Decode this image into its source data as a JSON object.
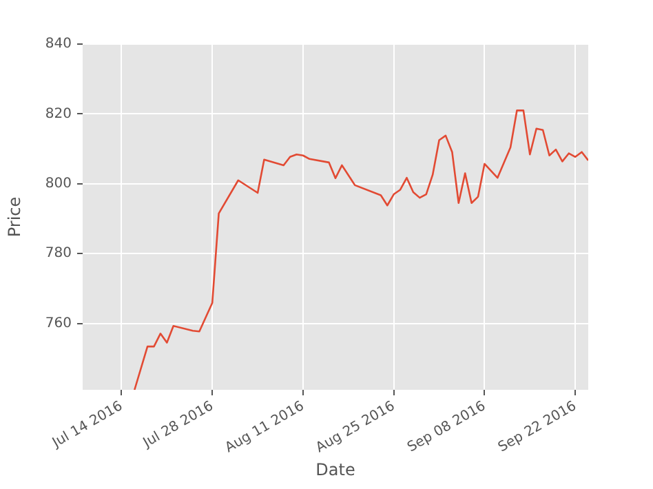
{
  "chart_data": {
    "type": "line",
    "xlabel": "Date",
    "ylabel": "Price",
    "x": [
      "2016-07-16",
      "2016-07-18",
      "2016-07-19",
      "2016-07-20",
      "2016-07-21",
      "2016-07-22",
      "2016-07-25",
      "2016-07-26",
      "2016-07-28",
      "2016-07-29",
      "2016-08-01",
      "2016-08-04",
      "2016-08-05",
      "2016-08-08",
      "2016-08-09",
      "2016-08-10",
      "2016-08-11",
      "2016-08-12",
      "2016-08-15",
      "2016-08-16",
      "2016-08-17",
      "2016-08-19",
      "2016-08-23",
      "2016-08-24",
      "2016-08-25",
      "2016-08-26",
      "2016-08-27",
      "2016-08-28",
      "2016-08-29",
      "2016-08-30",
      "2016-08-31",
      "2016-09-01",
      "2016-09-02",
      "2016-09-03",
      "2016-09-04",
      "2016-09-05",
      "2016-09-06",
      "2016-09-07",
      "2016-09-08",
      "2016-09-10",
      "2016-09-12",
      "2016-09-13",
      "2016-09-14",
      "2016-09-15",
      "2016-09-16",
      "2016-09-17",
      "2016-09-18",
      "2016-09-19",
      "2016-09-20",
      "2016-09-21",
      "2016-09-22",
      "2016-09-23",
      "2016-09-24"
    ],
    "series": [
      {
        "color": "#e24a33",
        "values": [
          741,
          753.4,
          753.4,
          757.1,
          754.5,
          759.3,
          757.9,
          757.7,
          765.9,
          791.5,
          801,
          797.4,
          806.9,
          805.3,
          807.7,
          808.4,
          808.1,
          807.1,
          806.1,
          801.6,
          805.3,
          799.6,
          796.7,
          793.8,
          797,
          798.3,
          801.7,
          797.6,
          796,
          797,
          802.6,
          812.5,
          813.8,
          809.1,
          794.5,
          803,
          794.5,
          796.3,
          805.7,
          801.7,
          810.4,
          821,
          821,
          808.4,
          815.8,
          815.4,
          808.1,
          809.8,
          806.4,
          808.7,
          807.7,
          809.1,
          806.7
        ]
      }
    ],
    "xlim": [
      "2016-07-08",
      "2016-09-24"
    ],
    "xticks": [
      {
        "value": "2016-07-14",
        "label": "Jul 14 2016"
      },
      {
        "value": "2016-07-28",
        "label": "Jul 28 2016"
      },
      {
        "value": "2016-08-11",
        "label": "Aug 11 2016"
      },
      {
        "value": "2016-08-25",
        "label": "Aug 25 2016"
      },
      {
        "value": "2016-09-08",
        "label": "Sep 08 2016"
      },
      {
        "value": "2016-09-22",
        "label": "Sep 22 2016"
      }
    ],
    "ylim": [
      741,
      840
    ],
    "yticks": [
      760,
      780,
      800,
      820,
      840
    ],
    "grid": true,
    "legend": false,
    "marker": "none",
    "line_style": "solid"
  }
}
